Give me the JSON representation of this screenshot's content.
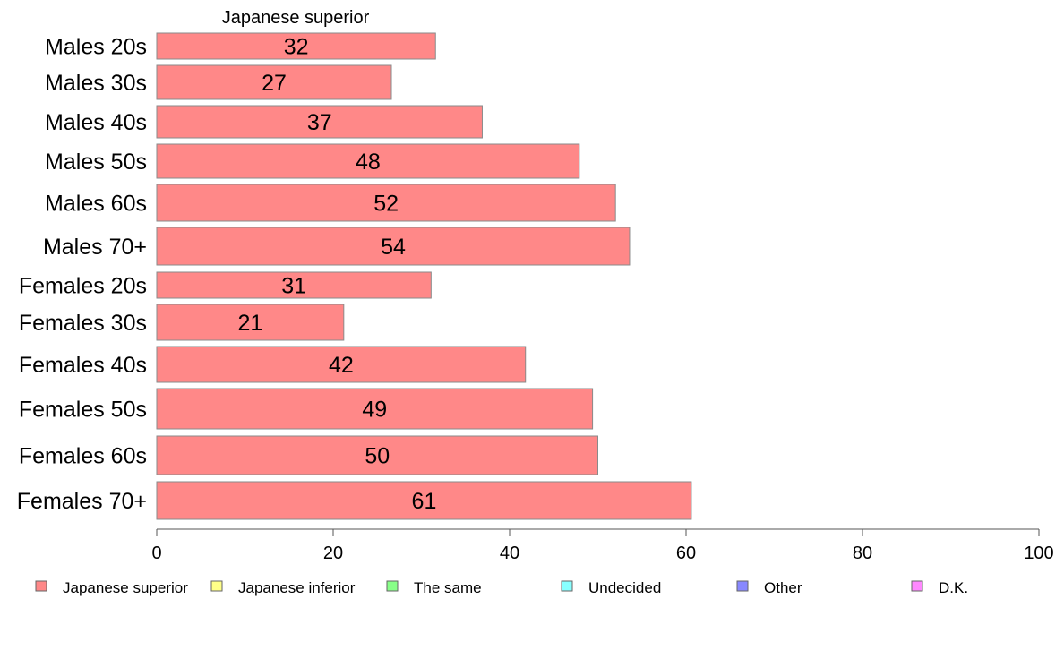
{
  "chart_data": {
    "type": "bar",
    "orientation": "horizontal",
    "title": "Japanese superior",
    "categories": [
      "Males 20s",
      "Males 30s",
      "Males 40s",
      "Males 50s",
      "Males 60s",
      "Males 70+",
      "Females 20s",
      "Females 30s",
      "Females 40s",
      "Females 50s",
      "Females 60s",
      "Females 70+"
    ],
    "series": [
      {
        "name": "Japanese superior",
        "color": "#ff8888",
        "values": [
          31.6,
          26.6,
          36.9,
          47.9,
          52.0,
          53.6,
          31.1,
          21.2,
          41.8,
          49.4,
          50.0,
          60.6
        ],
        "labels": [
          "32",
          "27",
          "37",
          "48",
          "52",
          "54",
          "31",
          "21",
          "42",
          "49",
          "50",
          "61"
        ]
      }
    ],
    "xlim": [
      0,
      100
    ],
    "xticks": [
      0,
      20,
      40,
      60,
      80,
      100
    ],
    "xtick_labels": [
      "0",
      "20",
      "40",
      "60",
      "80",
      "100"
    ],
    "legend": {
      "position": "bottom",
      "entries": [
        {
          "name": "Japanese superior",
          "color": "#ff8888"
        },
        {
          "name": "Japanese inferior",
          "color": "#ffff88"
        },
        {
          "name": "The same",
          "color": "#88ff88"
        },
        {
          "name": "Undecided",
          "color": "#88ffff"
        },
        {
          "name": "Other",
          "color": "#8888ff"
        },
        {
          "name": "D.K.",
          "color": "#ff88ff"
        }
      ]
    },
    "grid": false
  }
}
